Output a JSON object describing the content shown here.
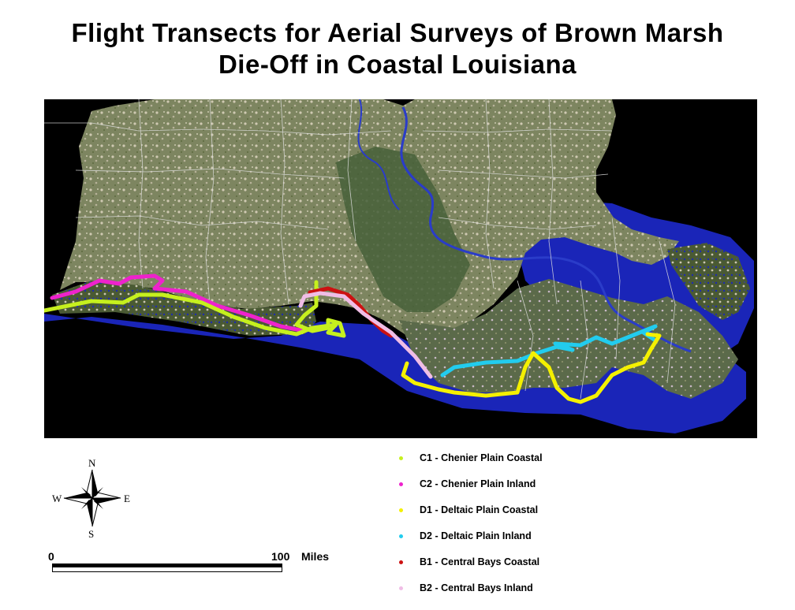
{
  "title": {
    "line1": "Flight Transects for Aerial Surveys of Brown Marsh",
    "line2": "Die-Off in Coastal Louisiana"
  },
  "compass": {
    "n": "N",
    "s": "S",
    "e": "E",
    "w": "W"
  },
  "scale": {
    "start": "0",
    "end": "100",
    "unit": "Miles"
  },
  "legend": [
    {
      "id": "C1",
      "label": "C1 - Chenier Plain Coastal",
      "color": "#c6f01e"
    },
    {
      "id": "C2",
      "label": "C2 - Chenier Plain Inland",
      "color": "#ee22cc"
    },
    {
      "id": "D1",
      "label": "D1 - Deltaic Plain Coastal",
      "color": "#f4f000"
    },
    {
      "id": "D2",
      "label": "D2 - Deltaic Plain Inland",
      "color": "#22ccee"
    },
    {
      "id": "B1",
      "label": "B1 - Central Bays Coastal",
      "color": "#cc1111"
    },
    {
      "id": "B2",
      "label": "B2 - Central Bays Inland",
      "color": "#f0bde6"
    }
  ],
  "colors": {
    "water": "#1a25b8",
    "land": "#6f7a55",
    "background": "#000000"
  }
}
